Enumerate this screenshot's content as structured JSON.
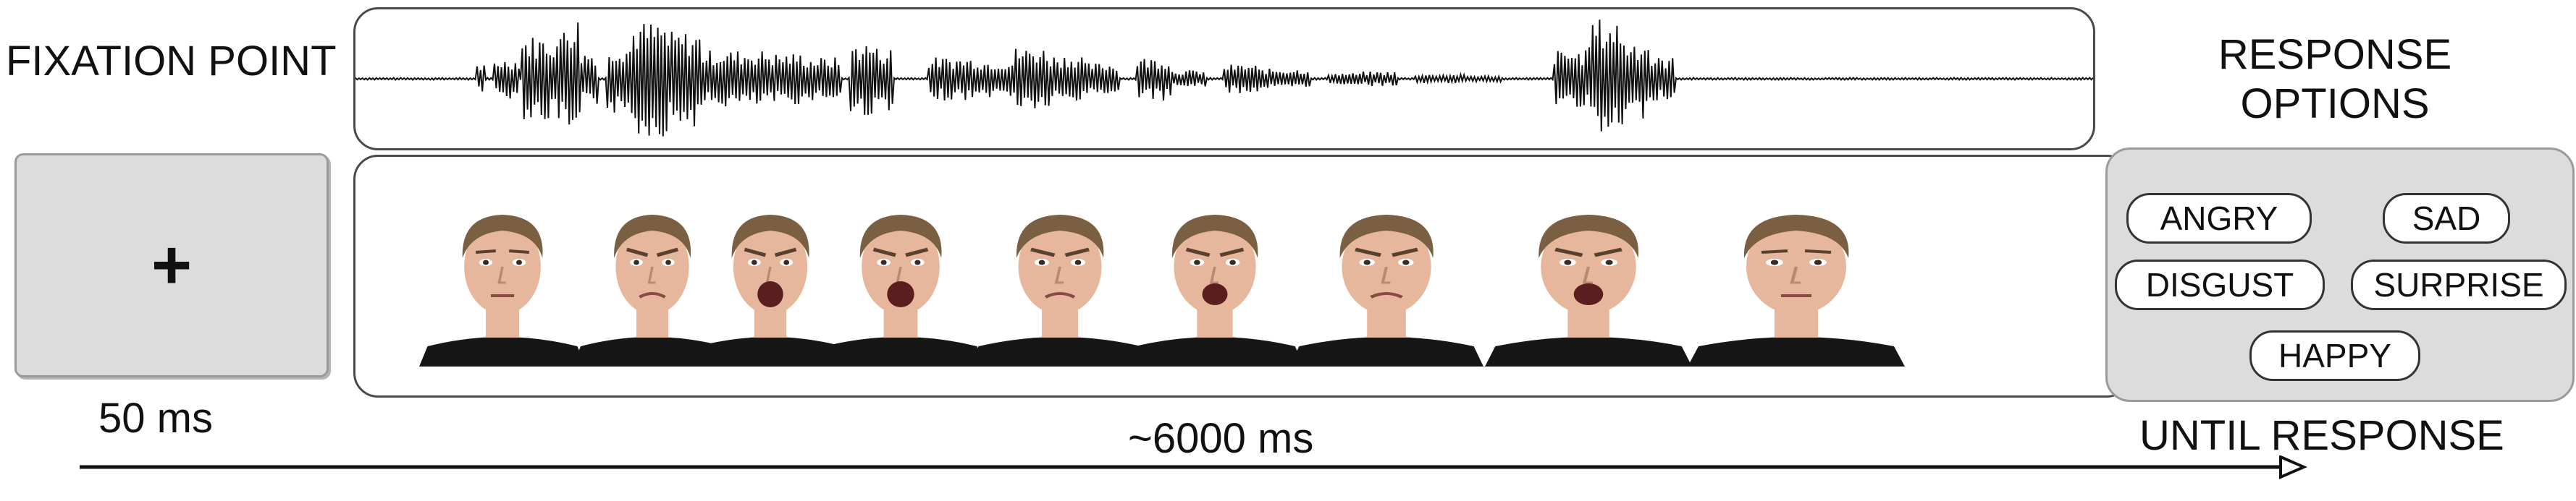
{
  "fixation": {
    "title": "FIXATION POINT",
    "symbol": "+",
    "duration": "50 ms"
  },
  "stimulus": {
    "duration": "~6000 ms",
    "faces": [
      {
        "expression": "neutral"
      },
      {
        "expression": "disgust"
      },
      {
        "expression": "surprise"
      },
      {
        "expression": "surprise"
      },
      {
        "expression": "angry"
      },
      {
        "expression": "angry"
      },
      {
        "expression": "disgust"
      },
      {
        "expression": "angry"
      },
      {
        "expression": "neutral"
      }
    ]
  },
  "response": {
    "title_line1": "RESPONSE",
    "title_line2": "OPTIONS",
    "options": [
      "ANGRY",
      "SAD",
      "DISGUST",
      "SURPRISE",
      "HAPPY"
    ],
    "duration": "UNTIL RESPONSE"
  },
  "colors": {
    "panel_gray": "#dcdcdc",
    "border": "#4a4a4a",
    "skin": "#e6b79c",
    "hair": "#7a5f42",
    "shirt": "#161616"
  }
}
